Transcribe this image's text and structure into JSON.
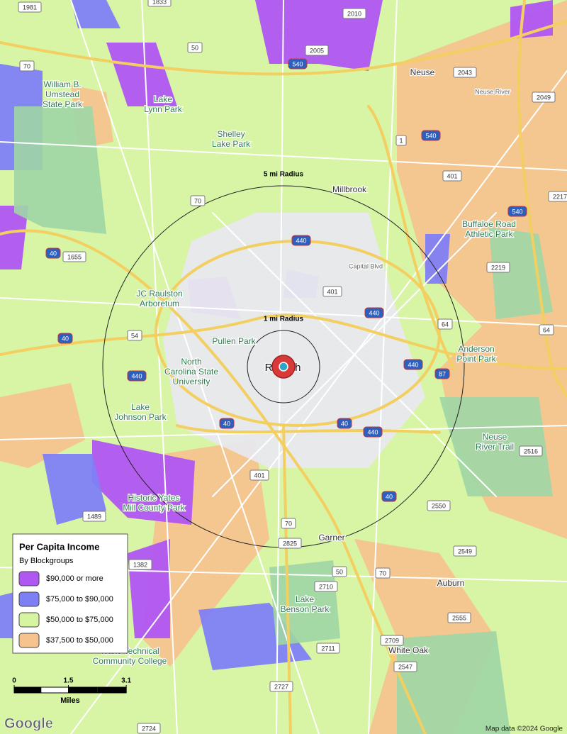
{
  "legend": {
    "title": "Per Capita Income",
    "subtitle": "By Blockgroups",
    "items": [
      {
        "label": "$90,000 or more",
        "color": "#b056f2"
      },
      {
        "label": "$75,000 to $90,000",
        "color": "#7f7ff5"
      },
      {
        "label": "$50,000 to $75,000",
        "color": "#d6f5a0"
      },
      {
        "label": "$37,500 to $50,000",
        "color": "#f6c38e"
      }
    ]
  },
  "radii": [
    {
      "miles": 5,
      "label": "5 mi Radius"
    },
    {
      "miles": 1,
      "label": "1 mi Radius"
    }
  ],
  "scale": {
    "ticks": [
      0,
      1.5,
      3.1
    ],
    "unit": "Miles"
  },
  "places": [
    {
      "lines": [
        "William B.",
        "Umstead",
        "State Park"
      ]
    },
    {
      "lines": [
        "Lake",
        "Lynn Park"
      ]
    },
    {
      "lines": [
        "Shelley",
        "Lake Park"
      ]
    },
    {
      "lines": [
        "Neuse"
      ]
    },
    {
      "lines": [
        "Millbrook"
      ]
    },
    {
      "lines": [
        "Buffaloe Road",
        "Athletic Park"
      ]
    },
    {
      "lines": [
        "JC Raulston",
        "Arboretum"
      ]
    },
    {
      "lines": [
        "Pullen Park"
      ]
    },
    {
      "lines": [
        "North",
        "Carolina State",
        "University"
      ]
    },
    {
      "lines": [
        "Lake",
        "Johnson Park"
      ]
    },
    {
      "lines": [
        "Raleigh"
      ]
    },
    {
      "lines": [
        "Anderson",
        "Point Park"
      ]
    },
    {
      "lines": [
        "Neuse",
        "River Trail"
      ]
    },
    {
      "lines": [
        "Historic Yates",
        "Mill County Park"
      ]
    },
    {
      "lines": [
        "Garner"
      ]
    },
    {
      "lines": [
        "Lake",
        "Benson Park"
      ]
    },
    {
      "lines": [
        "Auburn"
      ]
    },
    {
      "lines": [
        "White Oak"
      ]
    },
    {
      "lines": [
        "Wake Technical",
        "Community College"
      ]
    },
    {
      "lines": [
        "Capital Blvd"
      ]
    },
    {
      "lines": [
        "Neuse River"
      ]
    }
  ],
  "shields": [
    "1981",
    "1833",
    "50",
    "70",
    "540",
    "2005",
    "2010",
    "2043",
    "2049",
    "540",
    "1",
    "401",
    "70",
    "2217",
    "540",
    "440",
    "40",
    "1655",
    "2219",
    "401",
    "440",
    "64",
    "440",
    "54",
    "40",
    "440",
    "87",
    "40",
    "40",
    "440",
    "2516",
    "401",
    "2550",
    "2549",
    "1489",
    "1382",
    "2825",
    "70",
    "50",
    "70",
    "2710",
    "2711",
    "2727",
    "2709",
    "2547",
    "2555",
    "2724",
    "40",
    "64"
  ],
  "attribution": {
    "logo": "Google",
    "text": "Map data ©2024 Google"
  }
}
